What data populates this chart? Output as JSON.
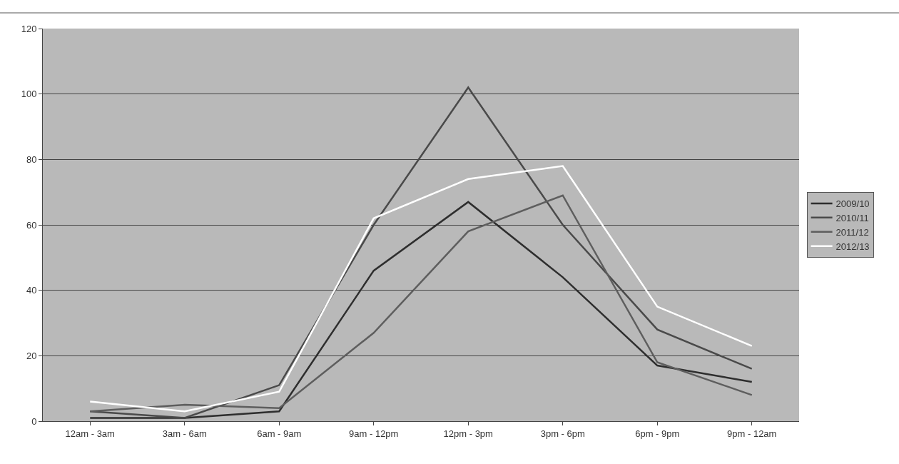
{
  "chart_data": {
    "type": "line",
    "categories": [
      "12am - 3am",
      "3am - 6am",
      "6am - 9am",
      "9am - 12pm",
      "12pm - 3pm",
      "3pm - 6pm",
      "6pm - 9pm",
      "9pm - 12am"
    ],
    "series": [
      {
        "name": "2009/10",
        "color": "#2e2e2e",
        "values": [
          1,
          1,
          3,
          46,
          67,
          44,
          17,
          12
        ]
      },
      {
        "name": "2010/11",
        "color": "#4a4a4a",
        "values": [
          3,
          1,
          11,
          60,
          102,
          60,
          28,
          16
        ]
      },
      {
        "name": "2011/12",
        "color": "#5e5e5e",
        "values": [
          3,
          5,
          4,
          27,
          58,
          69,
          18,
          8
        ]
      },
      {
        "name": "2012/13",
        "color": "#ffffff",
        "values": [
          6,
          3,
          9,
          62,
          74,
          78,
          35,
          23
        ]
      }
    ],
    "ylim": [
      0,
      120
    ],
    "yticks": [
      0,
      20,
      40,
      60,
      80,
      100,
      120
    ],
    "grid": "y",
    "legend": "right",
    "marker": "none",
    "line_style": "solid"
  }
}
